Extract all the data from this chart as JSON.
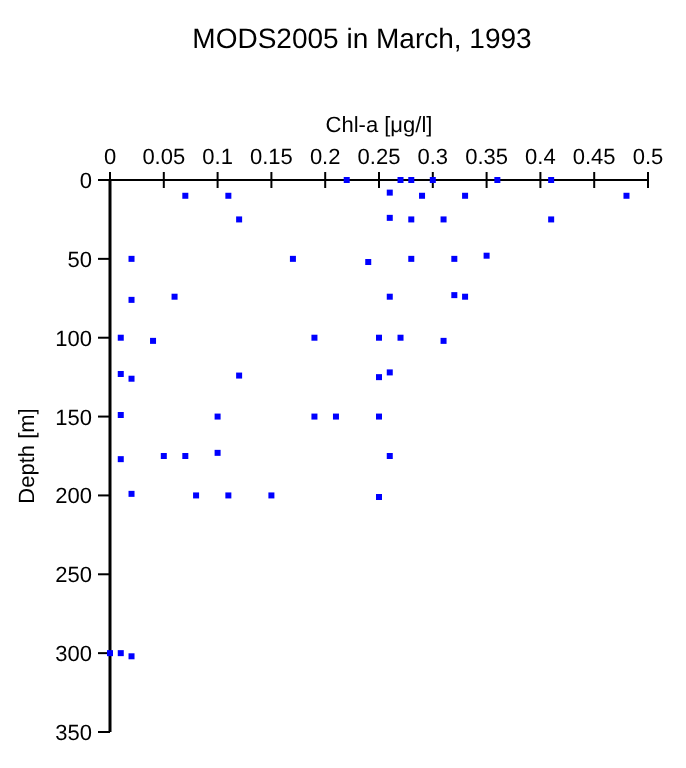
{
  "chart_data": {
    "type": "scatter",
    "title": "MODS2005 in March, 1993",
    "xlabel": "Chl-a [μg/l]",
    "ylabel": "Depth [m]",
    "xlim": [
      0,
      0.5
    ],
    "xticks": [
      0,
      0.05,
      0.1,
      0.15,
      0.2,
      0.25,
      0.3,
      0.35,
      0.4,
      0.45,
      0.5
    ],
    "ylim": [
      350,
      0
    ],
    "yticks": [
      0,
      50,
      100,
      150,
      200,
      250,
      300,
      350
    ],
    "marker": "square",
    "grid": false,
    "series": [
      {
        "color": "#0000ff",
        "x": [
          0.22,
          0.27,
          0.28,
          0.3,
          0.36,
          0.41,
          0.07,
          0.11,
          0.26,
          0.29,
          0.33,
          0.48,
          0.12,
          0.26,
          0.28,
          0.31,
          0.41,
          0.02,
          0.17,
          0.24,
          0.28,
          0.32,
          0.35,
          0.02,
          0.06,
          0.26,
          0.32,
          0.33,
          0.01,
          0.04,
          0.19,
          0.25,
          0.27,
          0.31,
          0.01,
          0.02,
          0.12,
          0.25,
          0.26,
          0.01,
          0.1,
          0.19,
          0.21,
          0.25,
          0.01,
          0.05,
          0.07,
          0.1,
          0.26,
          0.02,
          0.08,
          0.11,
          0.15,
          0.25,
          0.0,
          0.01,
          0.02
        ],
        "values": [
          0,
          0,
          0,
          0,
          0,
          0,
          10,
          10,
          8,
          10,
          10,
          10,
          25,
          24,
          25,
          25,
          25,
          50,
          50,
          52,
          50,
          50,
          48,
          76,
          74,
          74,
          73,
          74,
          100,
          102,
          100,
          100,
          100,
          102,
          123,
          126,
          124,
          125,
          122,
          149,
          150,
          150,
          150,
          150,
          177,
          175,
          175,
          173,
          175,
          199,
          200,
          200,
          200,
          201,
          300,
          300,
          302
        ]
      }
    ]
  }
}
